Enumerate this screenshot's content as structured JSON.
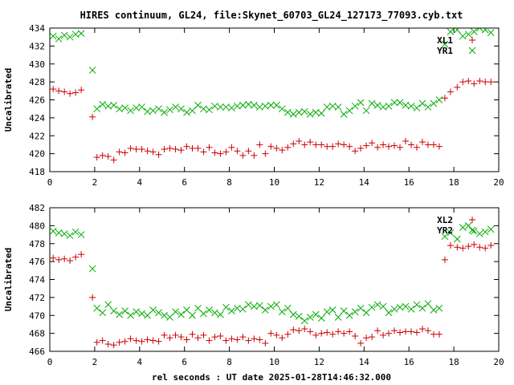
{
  "title": "HIRES continuum, GL24, file:Skynet_60703_GL24_127173_77093.cyb.txt",
  "xlabel": "rel seconds : UT date 2025-01-28T14:46:32.000",
  "colors": {
    "red": "#cc0000",
    "green": "#00aa00"
  },
  "chart_data": [
    {
      "type": "scatter",
      "ylabel": "Uncalibrated",
      "xlim": [
        0,
        20
      ],
      "ylim": [
        418,
        434
      ],
      "xticks": [
        0,
        2,
        4,
        6,
        8,
        10,
        12,
        14,
        16,
        18,
        20
      ],
      "yticks": [
        418,
        420,
        422,
        424,
        426,
        428,
        430,
        432,
        434
      ],
      "grid": false,
      "legend": "top-right",
      "series": [
        {
          "name": "XL1",
          "marker": "plus",
          "color": "#cc0000",
          "x": [
            0.15,
            0.4,
            0.65,
            0.9,
            1.15,
            1.4,
            1.9,
            2.1,
            2.35,
            2.6,
            2.85,
            3.1,
            3.35,
            3.6,
            3.85,
            4.1,
            4.35,
            4.6,
            4.85,
            5.1,
            5.35,
            5.6,
            5.85,
            6.1,
            6.35,
            6.6,
            6.85,
            7.1,
            7.35,
            7.6,
            7.85,
            8.1,
            8.35,
            8.6,
            8.85,
            9.1,
            9.35,
            9.6,
            9.85,
            10.1,
            10.35,
            10.6,
            10.85,
            11.1,
            11.35,
            11.6,
            11.85,
            12.1,
            12.35,
            12.6,
            12.85,
            13.1,
            13.35,
            13.6,
            13.85,
            14.1,
            14.35,
            14.6,
            14.85,
            15.1,
            15.35,
            15.6,
            15.85,
            16.1,
            16.35,
            16.6,
            16.85,
            17.1,
            17.35,
            17.6,
            17.85,
            18.15,
            18.4,
            18.65,
            18.9,
            19.15,
            19.4,
            19.65
          ],
          "y": [
            427.2,
            427.0,
            426.9,
            426.7,
            426.8,
            427.1,
            424.1,
            419.6,
            419.8,
            419.7,
            419.3,
            420.2,
            420.1,
            420.6,
            420.5,
            420.5,
            420.3,
            420.2,
            419.9,
            420.5,
            420.6,
            420.5,
            420.4,
            420.8,
            420.6,
            420.6,
            420.2,
            420.7,
            420.1,
            420.0,
            420.2,
            420.7,
            420.3,
            419.8,
            420.3,
            419.8,
            421.0,
            420.0,
            420.8,
            420.6,
            420.4,
            420.7,
            421.1,
            421.4,
            421.0,
            421.3,
            421.0,
            421.0,
            420.8,
            420.8,
            421.1,
            421.0,
            420.8,
            420.3,
            420.6,
            420.9,
            421.2,
            420.7,
            421.0,
            420.8,
            420.9,
            420.7,
            421.4,
            421.0,
            420.7,
            421.3,
            421.0,
            421.0,
            420.8,
            426.2,
            426.9,
            427.4,
            428.0,
            428.1,
            427.8,
            428.1,
            428.0,
            428.0
          ]
        },
        {
          "name": "YR1",
          "marker": "cross",
          "color": "#00aa00",
          "x": [
            0.15,
            0.4,
            0.65,
            0.9,
            1.15,
            1.4,
            1.9,
            2.1,
            2.35,
            2.6,
            2.85,
            3.1,
            3.35,
            3.6,
            3.85,
            4.1,
            4.35,
            4.6,
            4.85,
            5.1,
            5.35,
            5.6,
            5.85,
            6.1,
            6.35,
            6.6,
            6.85,
            7.1,
            7.35,
            7.6,
            7.85,
            8.1,
            8.35,
            8.6,
            8.85,
            9.1,
            9.35,
            9.6,
            9.85,
            10.1,
            10.35,
            10.6,
            10.85,
            11.1,
            11.35,
            11.6,
            11.85,
            12.1,
            12.35,
            12.6,
            12.85,
            13.1,
            13.35,
            13.6,
            13.85,
            14.1,
            14.35,
            14.6,
            14.85,
            15.1,
            15.35,
            15.6,
            15.85,
            16.1,
            16.35,
            16.6,
            16.85,
            17.1,
            17.35,
            17.6,
            17.85,
            18.15,
            18.4,
            18.65,
            18.9,
            19.15,
            19.4,
            19.65
          ],
          "y": [
            433.1,
            432.8,
            433.2,
            433.0,
            433.3,
            433.4,
            429.3,
            425.0,
            425.5,
            425.3,
            425.4,
            425.0,
            425.1,
            424.8,
            425.1,
            425.2,
            424.7,
            424.8,
            425.0,
            424.6,
            424.9,
            425.2,
            425.0,
            424.6,
            424.8,
            425.4,
            425.0,
            424.9,
            425.3,
            425.2,
            425.2,
            425.1,
            425.3,
            425.4,
            425.5,
            425.4,
            425.2,
            425.3,
            425.4,
            425.4,
            425.0,
            424.6,
            424.4,
            424.6,
            424.7,
            424.4,
            424.6,
            424.5,
            425.2,
            425.3,
            425.2,
            424.4,
            424.8,
            425.3,
            425.7,
            424.8,
            425.6,
            425.4,
            425.2,
            425.3,
            425.7,
            425.7,
            425.4,
            425.3,
            425.1,
            425.6,
            425.2,
            425.6,
            426.0,
            432.2,
            433.6,
            433.8,
            433.1,
            433.3,
            433.6,
            434.0,
            433.8,
            433.5
          ]
        }
      ]
    },
    {
      "type": "scatter",
      "ylabel": "Uncalibrated",
      "xlim": [
        0,
        20
      ],
      "ylim": [
        466,
        482
      ],
      "xticks": [
        0,
        2,
        4,
        6,
        8,
        10,
        12,
        14,
        16,
        18,
        20
      ],
      "yticks": [
        466,
        468,
        470,
        472,
        474,
        476,
        478,
        480,
        482
      ],
      "grid": false,
      "legend": "top-right",
      "series": [
        {
          "name": "XL2",
          "marker": "plus",
          "color": "#cc0000",
          "x": [
            0.15,
            0.4,
            0.65,
            0.9,
            1.15,
            1.4,
            1.9,
            2.1,
            2.35,
            2.6,
            2.85,
            3.1,
            3.35,
            3.6,
            3.85,
            4.1,
            4.35,
            4.6,
            4.85,
            5.1,
            5.35,
            5.6,
            5.85,
            6.1,
            6.35,
            6.6,
            6.85,
            7.1,
            7.35,
            7.6,
            7.85,
            8.1,
            8.35,
            8.6,
            8.85,
            9.1,
            9.35,
            9.6,
            9.85,
            10.1,
            10.35,
            10.6,
            10.85,
            11.1,
            11.35,
            11.6,
            11.85,
            12.1,
            12.35,
            12.6,
            12.85,
            13.1,
            13.35,
            13.6,
            13.85,
            14.1,
            14.35,
            14.6,
            14.85,
            15.1,
            15.35,
            15.6,
            15.85,
            16.1,
            16.35,
            16.6,
            16.85,
            17.1,
            17.35,
            17.6,
            17.85,
            18.15,
            18.4,
            18.65,
            18.9,
            19.15,
            19.4,
            19.65
          ],
          "y": [
            476.4,
            476.2,
            476.3,
            476.1,
            476.5,
            476.8,
            472.0,
            467.0,
            467.2,
            466.8,
            466.7,
            467.0,
            467.1,
            467.4,
            467.2,
            467.1,
            467.3,
            467.2,
            467.1,
            467.8,
            467.5,
            467.8,
            467.6,
            467.3,
            467.9,
            467.5,
            467.8,
            467.2,
            467.6,
            467.7,
            467.2,
            467.4,
            467.3,
            467.6,
            467.2,
            467.4,
            467.3,
            466.9,
            468.0,
            467.8,
            467.5,
            467.9,
            468.4,
            468.3,
            468.5,
            468.2,
            467.8,
            468.0,
            468.1,
            467.9,
            468.2,
            468.0,
            468.2,
            467.7,
            466.9,
            467.5,
            467.6,
            468.3,
            467.8,
            468.0,
            468.3,
            468.1,
            468.2,
            468.2,
            468.1,
            468.5,
            468.3,
            467.9,
            467.9,
            476.2,
            477.8,
            477.6,
            477.5,
            477.7,
            477.9,
            477.6,
            477.5,
            477.8
          ]
        },
        {
          "name": "YR2",
          "marker": "cross",
          "color": "#00aa00",
          "x": [
            0.15,
            0.4,
            0.65,
            0.9,
            1.15,
            1.4,
            1.9,
            2.1,
            2.35,
            2.6,
            2.85,
            3.1,
            3.35,
            3.6,
            3.85,
            4.1,
            4.35,
            4.6,
            4.85,
            5.1,
            5.35,
            5.6,
            5.85,
            6.1,
            6.35,
            6.6,
            6.85,
            7.1,
            7.35,
            7.6,
            7.85,
            8.1,
            8.35,
            8.6,
            8.85,
            9.1,
            9.35,
            9.6,
            9.85,
            10.1,
            10.35,
            10.6,
            10.85,
            11.1,
            11.35,
            11.6,
            11.85,
            12.1,
            12.35,
            12.6,
            12.85,
            13.1,
            13.35,
            13.6,
            13.85,
            14.1,
            14.35,
            14.6,
            14.85,
            15.1,
            15.35,
            15.6,
            15.85,
            16.1,
            16.35,
            16.6,
            16.85,
            17.1,
            17.35,
            17.6,
            17.85,
            18.15,
            18.4,
            18.65,
            18.9,
            19.15,
            19.4,
            19.65
          ],
          "y": [
            479.4,
            479.2,
            479.1,
            478.9,
            479.3,
            479.0,
            475.2,
            470.8,
            470.3,
            471.2,
            470.5,
            470.1,
            470.5,
            470.0,
            470.4,
            470.2,
            470.0,
            470.6,
            470.3,
            470.0,
            469.8,
            470.4,
            470.1,
            470.6,
            470.0,
            470.8,
            470.2,
            470.6,
            470.3,
            470.1,
            470.9,
            470.5,
            470.8,
            470.7,
            471.2,
            471.0,
            471.1,
            470.6,
            471.0,
            471.2,
            470.4,
            470.8,
            470.1,
            469.9,
            469.4,
            469.8,
            470.1,
            469.7,
            470.4,
            470.6,
            469.8,
            470.5,
            470.0,
            470.4,
            470.8,
            470.3,
            470.9,
            471.2,
            471.0,
            470.3,
            470.7,
            470.9,
            471.0,
            470.7,
            471.2,
            470.8,
            471.3,
            470.6,
            470.8,
            478.8,
            479.2,
            478.5,
            479.8,
            480.0,
            479.4,
            479.1,
            479.3,
            479.6
          ]
        }
      ]
    }
  ]
}
